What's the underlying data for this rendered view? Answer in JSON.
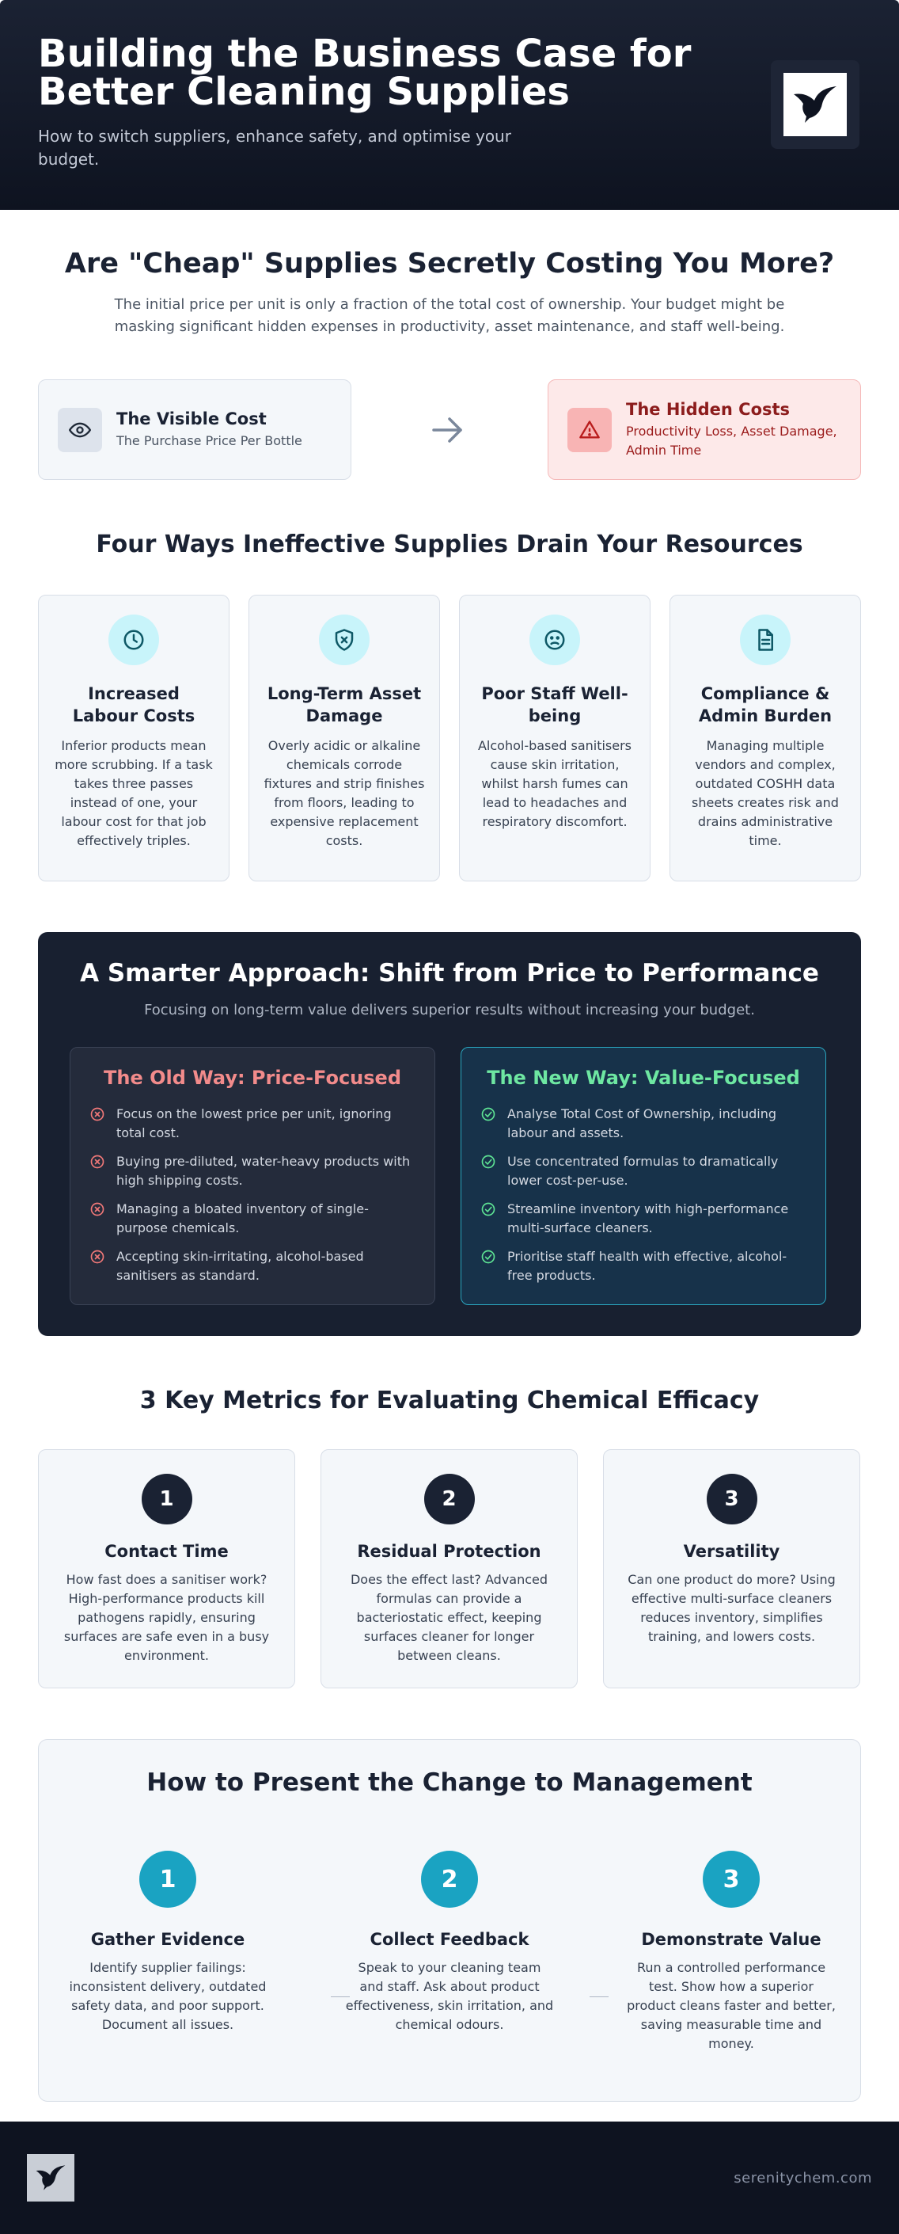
{
  "header": {
    "title": "Building the Business Case for Better Cleaning Supplies",
    "subtitle": "How to switch suppliers, enhance safety, and optimise your budget.",
    "logo_icon": "bird-icon"
  },
  "cheap_section": {
    "title": "Are \"Cheap\" Supplies Secretly Costing You More?",
    "lead": "The initial price per unit is only a fraction of the total cost of ownership. Your budget might be masking significant hidden expenses in productivity, asset maintenance, and staff well-being.",
    "visible": {
      "icon": "eye-icon",
      "title": "The Visible Cost",
      "desc": "The Purchase Price Per Bottle"
    },
    "arrow_icon": "arrow-right-icon",
    "hidden": {
      "icon": "warning-icon",
      "title": "The Hidden Costs",
      "desc": "Productivity Loss, Asset Damage, Admin Time"
    }
  },
  "four_ways": {
    "title": "Four Ways Ineffective Supplies Drain Your Resources",
    "cards": [
      {
        "icon": "clock-icon",
        "title": "Increased Labour Costs",
        "text": "Inferior products mean more scrubbing. If a task takes three passes instead of one, your labour cost for that job effectively triples."
      },
      {
        "icon": "shield-x-icon",
        "title": "Long-Term Asset Damage",
        "text": "Overly acidic or alkaline chemicals corrode fixtures and strip finishes from floors, leading to expensive replacement costs."
      },
      {
        "icon": "frown-icon",
        "title": "Poor Staff Well-being",
        "text": "Alcohol-based sanitisers cause skin irritation, whilst harsh fumes can lead to headaches and respiratory discomfort."
      },
      {
        "icon": "document-icon",
        "title": "Compliance & Admin Burden",
        "text": "Managing multiple vendors and complex, outdated COSHH data sheets creates risk and drains administrative time."
      }
    ]
  },
  "smarter": {
    "title": "A Smarter Approach: Shift from Price to Performance",
    "subtitle": "Focusing on long-term value delivers superior results without increasing your budget.",
    "old_way": {
      "title": "The Old Way: Price-Focused",
      "items": [
        "Focus on the lowest price per unit, ignoring total cost.",
        "Buying pre-diluted, water-heavy products with high shipping costs.",
        "Managing a bloated inventory of single-purpose chemicals.",
        "Accepting skin-irritating, alcohol-based sanitisers as standard."
      ]
    },
    "new_way": {
      "title": "The New Way: Value-Focused",
      "items": [
        "Analyse Total Cost of Ownership, including labour and assets.",
        "Use concentrated formulas to dramatically lower cost-per-use.",
        "Streamline inventory with high-performance multi-surface cleaners.",
        "Prioritise staff health with effective, alcohol-free products."
      ]
    }
  },
  "metrics": {
    "title": "3 Key Metrics for Evaluating Chemical Efficacy",
    "cards": [
      {
        "num": "1",
        "title": "Contact Time",
        "text": "How fast does a sanitiser work? High-performance products kill pathogens rapidly, ensuring surfaces are safe even in a busy environment."
      },
      {
        "num": "2",
        "title": "Residual Protection",
        "text": "Does the effect last? Advanced formulas can provide a bacteriostatic effect, keeping surfaces cleaner for longer between cleans."
      },
      {
        "num": "3",
        "title": "Versatility",
        "text": "Can one product do more? Using effective multi-surface cleaners reduces inventory, simplifies training, and lowers costs."
      }
    ]
  },
  "present": {
    "title": "How to Present the Change to Management",
    "steps": [
      {
        "num": "1",
        "title": "Gather Evidence",
        "text": "Identify supplier failings: inconsistent delivery, outdated safety data, and poor support. Document all issues."
      },
      {
        "num": "2",
        "title": "Collect Feedback",
        "text": "Speak to your cleaning team and staff. Ask about product effectiveness, skin irritation, and chemical odours."
      },
      {
        "num": "3",
        "title": "Demonstrate Value",
        "text": "Run a controlled performance test. Show how a superior product cleans faster and better, saving measurable time and money."
      }
    ]
  },
  "footer": {
    "logo_icon": "bird-icon",
    "site": "serenitychem.com"
  },
  "colors": {
    "navy": "#1a2233",
    "teal": "#1aa3c2",
    "red_accent": "#f28b8b",
    "green_accent": "#6ee7a2"
  }
}
